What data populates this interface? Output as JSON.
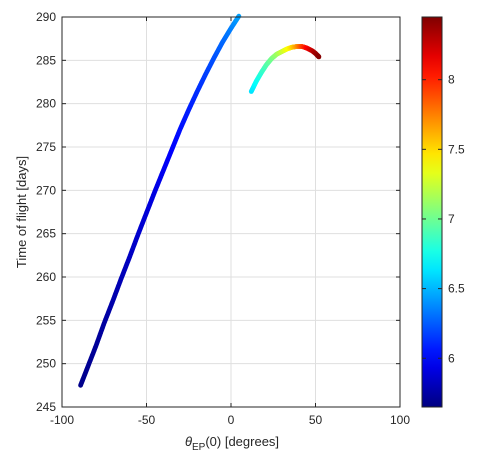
{
  "chart_data": {
    "type": "scatter",
    "xlabel_symbol": "θ",
    "xlabel_sub": "EP",
    "xlabel_rest": "(0) [degrees]",
    "ylabel": "Time of flight [days]",
    "xlim": [
      -100,
      100
    ],
    "ylim": [
      245,
      290
    ],
    "x_ticks": [
      -100,
      -50,
      0,
      50,
      100
    ],
    "y_ticks": [
      245,
      250,
      255,
      260,
      265,
      270,
      275,
      280,
      285,
      290
    ],
    "grid": true,
    "colormap": "jet",
    "colorbar": {
      "range": [
        5.65,
        8.45
      ],
      "ticks": [
        6,
        6.5,
        7,
        7.5,
        8
      ]
    },
    "points": [
      [
        -89,
        247.5,
        5.68
      ],
      [
        -85,
        249.5,
        5.7
      ],
      [
        -80,
        252.0,
        5.72
      ],
      [
        -75,
        254.7,
        5.74
      ],
      [
        -70,
        257.2,
        5.77
      ],
      [
        -65,
        259.8,
        5.8
      ],
      [
        -60,
        262.3,
        5.83
      ],
      [
        -55,
        264.9,
        5.86
      ],
      [
        -50,
        267.4,
        5.89
      ],
      [
        -45,
        269.9,
        5.92
      ],
      [
        -40,
        272.3,
        5.96
      ],
      [
        -35,
        274.7,
        6.0
      ],
      [
        -30,
        277.1,
        6.04
      ],
      [
        -25,
        279.3,
        6.08
      ],
      [
        -20,
        281.4,
        6.12
      ],
      [
        -15,
        283.4,
        6.17
      ],
      [
        -10,
        285.3,
        6.22
      ],
      [
        -5,
        287.1,
        6.28
      ],
      [
        0,
        288.7,
        6.35
      ],
      [
        5,
        290.2,
        6.45
      ],
      [
        12,
        281.4,
        6.62
      ],
      [
        15,
        282.6,
        6.72
      ],
      [
        18,
        283.6,
        6.82
      ],
      [
        21,
        284.5,
        6.92
      ],
      [
        24,
        285.2,
        7.02
      ],
      [
        27,
        285.7,
        7.12
      ],
      [
        30,
        286.0,
        7.24
      ],
      [
        33,
        286.3,
        7.36
      ],
      [
        36,
        286.5,
        7.5
      ],
      [
        39,
        286.6,
        7.68
      ],
      [
        42,
        286.6,
        7.9
      ],
      [
        45,
        286.4,
        8.1
      ],
      [
        48,
        286.1,
        8.25
      ],
      [
        50,
        285.8,
        8.35
      ],
      [
        52,
        285.4,
        8.43
      ]
    ]
  }
}
